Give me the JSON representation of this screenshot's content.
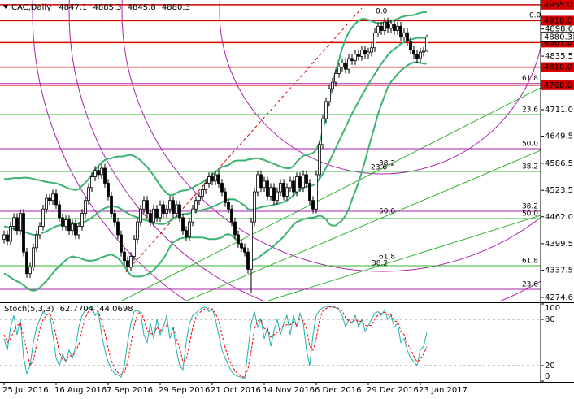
{
  "chart_data": {
    "type": "candlestick",
    "title": "CAC,Daily",
    "categories": [
      "25 Jul 2016",
      null,
      null,
      null,
      null,
      null,
      null,
      null,
      null,
      null,
      null,
      null,
      null,
      null,
      null,
      null,
      "16 Aug 2016",
      null,
      null,
      null,
      null,
      null,
      null,
      null,
      null,
      null,
      null,
      null,
      null,
      null,
      null,
      null,
      "7 Sep 2016",
      null,
      null,
      null,
      null,
      null,
      null,
      null,
      null,
      null,
      null,
      null,
      null,
      null,
      null,
      null,
      "29 Sep 2016",
      null,
      null,
      null,
      null,
      null,
      null,
      null,
      null,
      null,
      null,
      null,
      null,
      null,
      null,
      null,
      "21 Oct 2016",
      null,
      null,
      null,
      null,
      null,
      null,
      null,
      null,
      null,
      null,
      null,
      null,
      null,
      null,
      null,
      "14 Nov 2016",
      null,
      null,
      null,
      null,
      null,
      null,
      null,
      null,
      null,
      null,
      null,
      null,
      null,
      null,
      null,
      "6 Dec 2016",
      null,
      null,
      null,
      null,
      null,
      null,
      null,
      null,
      null,
      null,
      null,
      null,
      null,
      null,
      null,
      "29 Dec 2016",
      null,
      null,
      null,
      null,
      null,
      null,
      null,
      null,
      null,
      null,
      null,
      null,
      null,
      null,
      null,
      "23 Jan 2017",
      null,
      null
    ],
    "open": [
      4410,
      4420,
      4405,
      4440,
      4460,
      4430,
      4470,
      4380,
      4330,
      4345,
      4390,
      4420,
      4440,
      4480,
      4505,
      4500,
      4515,
      4490,
      4460,
      4440,
      4455,
      4430,
      4445,
      4420,
      4440,
      4470,
      4500,
      4530,
      4555,
      4570,
      4560,
      4575,
      4540,
      4510,
      4470,
      4450,
      4420,
      4380,
      4360,
      4345,
      4370,
      4410,
      4450,
      4480,
      4500,
      4470,
      4450,
      4480,
      4460,
      4490,
      4470,
      4480,
      4500,
      4470,
      4490,
      4460,
      4430,
      4415,
      4450,
      4480,
      4500,
      4510,
      4525,
      4540,
      4555,
      4545,
      4560,
      4540,
      4520,
      4495,
      4480,
      4450,
      4420,
      4400,
      4390,
      4380,
      4340,
      4450,
      4520,
      4560,
      4530,
      4545,
      4510,
      4530,
      4500,
      4520,
      4540,
      4510,
      4530,
      4545,
      4520,
      4555,
      4530,
      4560,
      4540,
      4500,
      4480,
      4560,
      4630,
      4690,
      4730,
      4760,
      4775,
      4795,
      4810,
      4820,
      4805,
      4830,
      4825,
      4840,
      4835,
      4850,
      4840,
      4845,
      4855,
      4890,
      4905,
      4895,
      4915,
      4900,
      4910,
      4895,
      4905,
      4880,
      4890,
      4870,
      4850,
      4840,
      4830,
      4845,
      4847.1
    ],
    "high": [
      4430,
      4430,
      4450,
      4470,
      4470,
      4480,
      4480,
      4390,
      4355,
      4400,
      4430,
      4450,
      4490,
      4515,
      4515,
      4525,
      4525,
      4500,
      4470,
      4465,
      4465,
      4455,
      4455,
      4450,
      4480,
      4510,
      4540,
      4565,
      4580,
      4580,
      4585,
      4585,
      4550,
      4520,
      4480,
      4460,
      4430,
      4390,
      4370,
      4380,
      4420,
      4460,
      4490,
      4510,
      4510,
      4480,
      4490,
      4490,
      4500,
      4500,
      4490,
      4510,
      4510,
      4500,
      4500,
      4470,
      4440,
      4460,
      4490,
      4510,
      4520,
      4535,
      4550,
      4565,
      4565,
      4570,
      4570,
      4550,
      4530,
      4505,
      4490,
      4460,
      4430,
      4410,
      4400,
      4390,
      4460,
      4530,
      4570,
      4570,
      4555,
      4555,
      4540,
      4540,
      4530,
      4550,
      4550,
      4540,
      4555,
      4555,
      4565,
      4565,
      4570,
      4570,
      4550,
      4510,
      4570,
      4640,
      4700,
      4740,
      4770,
      4785,
      4805,
      4820,
      4830,
      4830,
      4840,
      4840,
      4850,
      4850,
      4860,
      4860,
      4855,
      4865,
      4900,
      4915,
      4915,
      4925,
      4925,
      4920,
      4920,
      4915,
      4915,
      4900,
      4900,
      4880,
      4860,
      4850,
      4855,
      4857.1,
      4885.3
    ],
    "low": [
      4400,
      4395,
      4395,
      4430,
      4420,
      4420,
      4370,
      4320,
      4320,
      4335,
      4380,
      4410,
      4430,
      4470,
      4490,
      4490,
      4480,
      4450,
      4430,
      4430,
      4420,
      4420,
      4410,
      4410,
      4430,
      4460,
      4490,
      4520,
      4545,
      4550,
      4550,
      4530,
      4500,
      4460,
      4440,
      4410,
      4370,
      4350,
      4335,
      4335,
      4360,
      4400,
      4440,
      4470,
      4460,
      4440,
      4440,
      4450,
      4450,
      4460,
      4460,
      4470,
      4460,
      4460,
      4450,
      4420,
      4405,
      4405,
      4440,
      4470,
      4490,
      4500,
      4515,
      4530,
      4535,
      4535,
      4530,
      4510,
      4485,
      4470,
      4440,
      4410,
      4390,
      4380,
      4370,
      4330,
      4285,
      4440,
      4510,
      4520,
      4520,
      4500,
      4500,
      4490,
      4490,
      4510,
      4500,
      4500,
      4520,
      4510,
      4510,
      4520,
      4520,
      4530,
      4490,
      4470,
      4470,
      4550,
      4620,
      4680,
      4720,
      4750,
      4765,
      4785,
      4800,
      4795,
      4795,
      4815,
      4815,
      4825,
      4825,
      4830,
      4830,
      4835,
      4845,
      4880,
      4885,
      4885,
      4890,
      4890,
      4885,
      4885,
      4870,
      4870,
      4860,
      4840,
      4830,
      4820,
      4820,
      4835,
      4845.8
    ],
    "close": [
      4420,
      4405,
      4440,
      4460,
      4430,
      4470,
      4380,
      4330,
      4345,
      4390,
      4420,
      4440,
      4480,
      4505,
      4500,
      4515,
      4490,
      4460,
      4440,
      4455,
      4430,
      4445,
      4420,
      4440,
      4470,
      4500,
      4530,
      4555,
      4570,
      4560,
      4575,
      4540,
      4510,
      4470,
      4450,
      4420,
      4380,
      4360,
      4345,
      4370,
      4410,
      4450,
      4480,
      4500,
      4470,
      4450,
      4480,
      4460,
      4490,
      4470,
      4480,
      4500,
      4470,
      4490,
      4460,
      4430,
      4415,
      4450,
      4480,
      4500,
      4510,
      4525,
      4540,
      4555,
      4545,
      4560,
      4540,
      4520,
      4495,
      4480,
      4450,
      4420,
      4400,
      4390,
      4380,
      4340,
      4450,
      4520,
      4560,
      4530,
      4545,
      4510,
      4530,
      4500,
      4520,
      4540,
      4510,
      4530,
      4545,
      4520,
      4555,
      4530,
      4560,
      4540,
      4500,
      4480,
      4560,
      4630,
      4690,
      4730,
      4760,
      4775,
      4795,
      4810,
      4820,
      4805,
      4830,
      4825,
      4840,
      4835,
      4850,
      4840,
      4845,
      4855,
      4890,
      4905,
      4895,
      4915,
      4900,
      4910,
      4895,
      4905,
      4880,
      4890,
      4870,
      4850,
      4840,
      4830,
      4845,
      4847.1,
      4880.3
    ],
    "bb_upper": [
      4550,
      4550,
      4551,
      4552,
      4552,
      4552,
      4553,
      4553,
      4552,
      4550,
      4548,
      4547,
      4545,
      4543,
      4542,
      4541,
      4540,
      4537,
      4534,
      4531,
      4527,
      4526,
      4524,
      4527,
      4534,
      4541,
      4550,
      4560,
      4571,
      4580,
      4588,
      4594,
      4597,
      4598,
      4601,
      4602,
      4602,
      4603,
      4605,
      4606,
      4603,
      4599,
      4593,
      4585,
      4578,
      4568,
      4558,
      4546,
      4535,
      4525,
      4517,
      4512,
      4513,
      4517,
      4521,
      4523,
      4524,
      4526,
      4530,
      4534,
      4538,
      4542,
      4548,
      4554,
      4560,
      4566,
      4572,
      4578,
      4580,
      4582,
      4588,
      4592,
      4593,
      4593,
      4593,
      4595,
      4596,
      4598,
      4598,
      4596,
      4594,
      4591,
      4588,
      4585,
      4582,
      4579,
      4576,
      4575,
      4575,
      4580,
      4590,
      4597,
      4604,
      4606,
      4608,
      4610,
      4618,
      4635,
      4662,
      4696,
      4735,
      4771,
      4802,
      4828,
      4854,
      4875,
      4891,
      4902,
      4911,
      4918,
      4922,
      4922,
      4920,
      4917,
      4914,
      4911,
      4913,
      4913,
      4913,
      4916,
      4920,
      4922,
      4926,
      4928,
      4930,
      4930,
      4931,
      4934,
      4936,
      4938,
      4938
    ],
    "bb_middle": [
      4440,
      4438,
      4436,
      4434,
      4432,
      4430,
      4428,
      4425,
      4422,
      4420,
      4420,
      4422,
      4425,
      4428,
      4432,
      4436,
      4440,
      4442,
      4444,
      4446,
      4447,
      4448,
      4446,
      4447,
      4449,
      4451,
      4455,
      4460,
      4466,
      4472,
      4478,
      4482,
      4485,
      4486,
      4486,
      4484,
      4480,
      4475,
      4470,
      4466,
      4463,
      4461,
      4458,
      4455,
      4453,
      4450,
      4448,
      4446,
      4445,
      4445,
      4447,
      4452,
      4458,
      4462,
      4466,
      4468,
      4469,
      4470,
      4472,
      4474,
      4476,
      4478,
      4480,
      4482,
      4485,
      4488,
      4492,
      4496,
      4500,
      4502,
      4503,
      4502,
      4498,
      4493,
      4488,
      4480,
      4478,
      4480,
      4482,
      4484,
      4486,
      4487,
      4488,
      4490,
      4492,
      4494,
      4496,
      4500,
      4505,
      4512,
      4520,
      4525,
      4530,
      4532,
      4534,
      4535,
      4540,
      4550,
      4562,
      4576,
      4590,
      4606,
      4622,
      4638,
      4654,
      4670,
      4686,
      4702,
      4716,
      4730,
      4744,
      4757,
      4770,
      4782,
      4794,
      4806,
      4818,
      4828,
      4838,
      4846,
      4852,
      4858,
      4864,
      4868,
      4872,
      4874,
      4876,
      4878,
      4878,
      4878,
      4878
    ],
    "bb_lower": [
      4330,
      4326,
      4321,
      4316,
      4312,
      4308,
      4303,
      4297,
      4292,
      4290,
      4292,
      4297,
      4305,
      4313,
      4322,
      4331,
      4340,
      4347,
      4354,
      4361,
      4367,
      4370,
      4368,
      4367,
      4364,
      4361,
      4360,
      4360,
      4361,
      4364,
      4368,
      4370,
      4373,
      4374,
      4371,
      4366,
      4358,
      4347,
      4335,
      4326,
      4323,
      4323,
      4323,
      4325,
      4328,
      4332,
      4338,
      4346,
      4355,
      4365,
      4377,
      4392,
      4403,
      4407,
      4411,
      4413,
      4414,
      4414,
      4414,
      4414,
      4414,
      4414,
      4412,
      4410,
      4410,
      4410,
      4412,
      4414,
      4420,
      4422,
      4418,
      4412,
      4403,
      4393,
      4383,
      4365,
      4360,
      4362,
      4366,
      4372,
      4378,
      4383,
      4388,
      4395,
      4402,
      4409,
      4416,
      4425,
      4435,
      4444,
      4450,
      4453,
      4456,
      4458,
      4460,
      4460,
      4462,
      4465,
      4462,
      4456,
      4445,
      4441,
      4442,
      4448,
      4454,
      4465,
      4481,
      4502,
      4521,
      4542,
      4566,
      4592,
      4620,
      4647,
      4674,
      4701,
      4723,
      4743,
      4763,
      4776,
      4784,
      4794,
      4802,
      4808,
      4814,
      4818,
      4821,
      4822,
      4820,
      4818,
      4818
    ],
    "bb_color": "#3cb371",
    "up_color": "#ffffff",
    "down_color": "#000000",
    "ylim": [
      4267,
      4966
    ],
    "yticks": [
      4274.6,
      4337.5,
      4399.5,
      {
        "value": 4462,
        "label": "4462.0"
      },
      4523.5,
      4586.5,
      4649.5,
      {
        "value": 4711,
        "label": "4711.0"
      },
      4835.5,
      4898.6
    ],
    "levels": [
      {
        "value": 4955,
        "label": "4955.0"
      },
      {
        "value": 4918,
        "label": "4918.0"
      },
      {
        "value": 4867,
        "label": "4867.0"
      },
      {
        "value": 4810,
        "label": "4810.0"
      },
      {
        "value": 4768,
        "label": "4768.0"
      }
    ],
    "level_color": "#d40000",
    "fib_levels": [
      {
        "value": 4772,
        "label": "61.8",
        "color": "#aa22aa"
      },
      {
        "value": 4699.6,
        "label": "23.6",
        "color": "#32b432"
      },
      {
        "value": 4620.3,
        "label": "50.0",
        "color": "#aa22aa"
      },
      {
        "value": 4567.4,
        "label": "38.2",
        "color": "#32b432"
      },
      {
        "value": 4474.8,
        "label": "38.2",
        "color": "#aa22aa"
      },
      {
        "value": 4457.8,
        "label": "50.0",
        "color": "#32b432"
      },
      {
        "value": 4348.3,
        "label": "61.8",
        "color": "#32b432"
      },
      {
        "value": 4293.5,
        "label": "23.6",
        "color": "#aa22aa"
      }
    ],
    "fan_labels": [
      {
        "text": "0.0",
        "color": "#aa22aa"
      },
      {
        "text": "0.0",
        "color": "#32b432"
      },
      {
        "text": "23.6",
        "color": "#aa22aa"
      },
      {
        "text": "38.2",
        "color": "#32b432"
      },
      {
        "text": "50.0",
        "color": "#32b432"
      },
      {
        "text": "61.8",
        "color": "#32b432"
      },
      {
        "text": "38.2",
        "color": "#aa22aa"
      }
    ],
    "stoch": {
      "title": "Stoch(5,3,3)",
      "k": [
        55,
        40,
        70,
        85,
        60,
        80,
        30,
        10,
        20,
        50,
        70,
        80,
        90,
        85,
        88,
        60,
        30,
        20,
        35,
        25,
        40,
        30,
        45,
        70,
        85,
        92,
        95,
        96,
        85,
        90,
        60,
        40,
        25,
        15,
        10,
        8,
        5,
        20,
        50,
        75,
        90,
        92,
        88,
        60,
        50,
        75,
        55,
        80,
        60,
        70,
        85,
        55,
        70,
        40,
        20,
        15,
        50,
        75,
        85,
        88,
        92,
        95,
        96,
        90,
        94,
        80,
        60,
        40,
        30,
        20,
        12,
        8,
        6,
        5,
        3,
        40,
        75,
        90,
        70,
        80,
        55,
        70,
        45,
        65,
        80,
        60,
        75,
        85,
        60,
        85,
        70,
        88,
        75,
        40,
        20,
        60,
        85,
        92,
        95,
        96,
        97,
        96,
        95,
        92,
        85,
        70,
        80,
        75,
        85,
        70,
        80,
        65,
        72,
        80,
        88,
        90,
        85,
        92,
        80,
        85,
        70,
        75,
        50,
        55,
        40,
        30,
        25,
        20,
        40,
        45,
        62.7704
      ],
      "d": [
        60,
        50,
        55,
        65,
        72,
        75,
        57,
        40,
        20,
        27,
        47,
        67,
        80,
        85,
        88,
        78,
        59,
        37,
        28,
        27,
        33,
        32,
        38,
        48,
        67,
        82,
        91,
        94,
        92,
        90,
        78,
        63,
        42,
        27,
        17,
        11,
        8,
        11,
        25,
        48,
        72,
        86,
        90,
        80,
        66,
        62,
        60,
        70,
        65,
        70,
        72,
        70,
        70,
        55,
        43,
        25,
        28,
        47,
        70,
        83,
        88,
        92,
        94,
        94,
        93,
        88,
        78,
        60,
        43,
        30,
        21,
        13,
        9,
        6,
        5,
        16,
        39,
        68,
        78,
        80,
        68,
        68,
        57,
        60,
        63,
        68,
        72,
        73,
        73,
        77,
        72,
        81,
        78,
        68,
        45,
        40,
        55,
        79,
        91,
        94,
        96,
        96,
        96,
        94,
        91,
        82,
        78,
        75,
        80,
        77,
        78,
        72,
        72,
        72,
        80,
        86,
        88,
        89,
        86,
        86,
        78,
        77,
        65,
        60,
        48,
        42,
        32,
        25,
        28,
        35,
        44.0698
      ],
      "k_color": "#20b2aa",
      "d_color": "#ff0000",
      "ylim": [
        0,
        100
      ],
      "yticks": [
        0,
        20,
        80,
        100
      ]
    }
  }
}
